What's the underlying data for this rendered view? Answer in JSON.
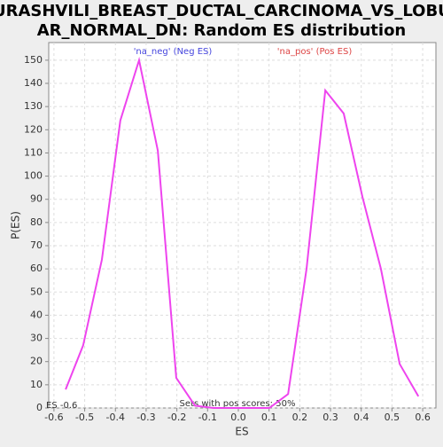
{
  "chart_data": {
    "type": "line",
    "title_lines": [
      "TURASHVILI_BREAST_DUCTAL_CARCINOMA_VS_LOBUL",
      "AR_NORMAL_DN: Random ES distribution"
    ],
    "x_label": "ES",
    "y_label": "P(ES)",
    "annotations": [
      {
        "text": "'na_neg' (Neg ES)",
        "color": "#4444dd"
      },
      {
        "text": "'na_pos' (Pos ES)",
        "color": "#dd4444"
      },
      {
        "text": "Sets with pos scores: 50%",
        "color": "#333333"
      },
      {
        "text": "ES -0.6",
        "color": "#333333"
      }
    ],
    "x": [
      -0.562,
      -0.505,
      -0.444,
      -0.384,
      -0.323,
      -0.262,
      -0.202,
      -0.141,
      -0.081,
      -0.02,
      0.04,
      0.101,
      0.162,
      0.222,
      0.283,
      0.343,
      0.404,
      0.464,
      0.525,
      0.586
    ],
    "series": [
      {
        "name": "P(ES)",
        "color": "#ee44ee",
        "values": [
          8,
          27,
          64,
          124,
          150,
          111,
          13,
          1,
          0,
          0,
          0,
          0,
          6,
          60,
          137,
          127,
          91,
          60,
          19,
          5
        ]
      }
    ],
    "xlim": [
      -0.617,
      0.643
    ],
    "ylim": [
      0,
      157.6
    ],
    "xticks": [
      -0.6,
      -0.5,
      -0.4,
      -0.3,
      -0.2,
      -0.1,
      {
        "value": 0,
        "label": "0.0"
      },
      0.1,
      0.2,
      0.3,
      0.4,
      0.5,
      0.6
    ],
    "yticks": [
      0,
      10,
      20,
      30,
      40,
      50,
      60,
      70,
      80,
      90,
      100,
      110,
      120,
      130,
      140,
      150
    ],
    "grid": true
  }
}
